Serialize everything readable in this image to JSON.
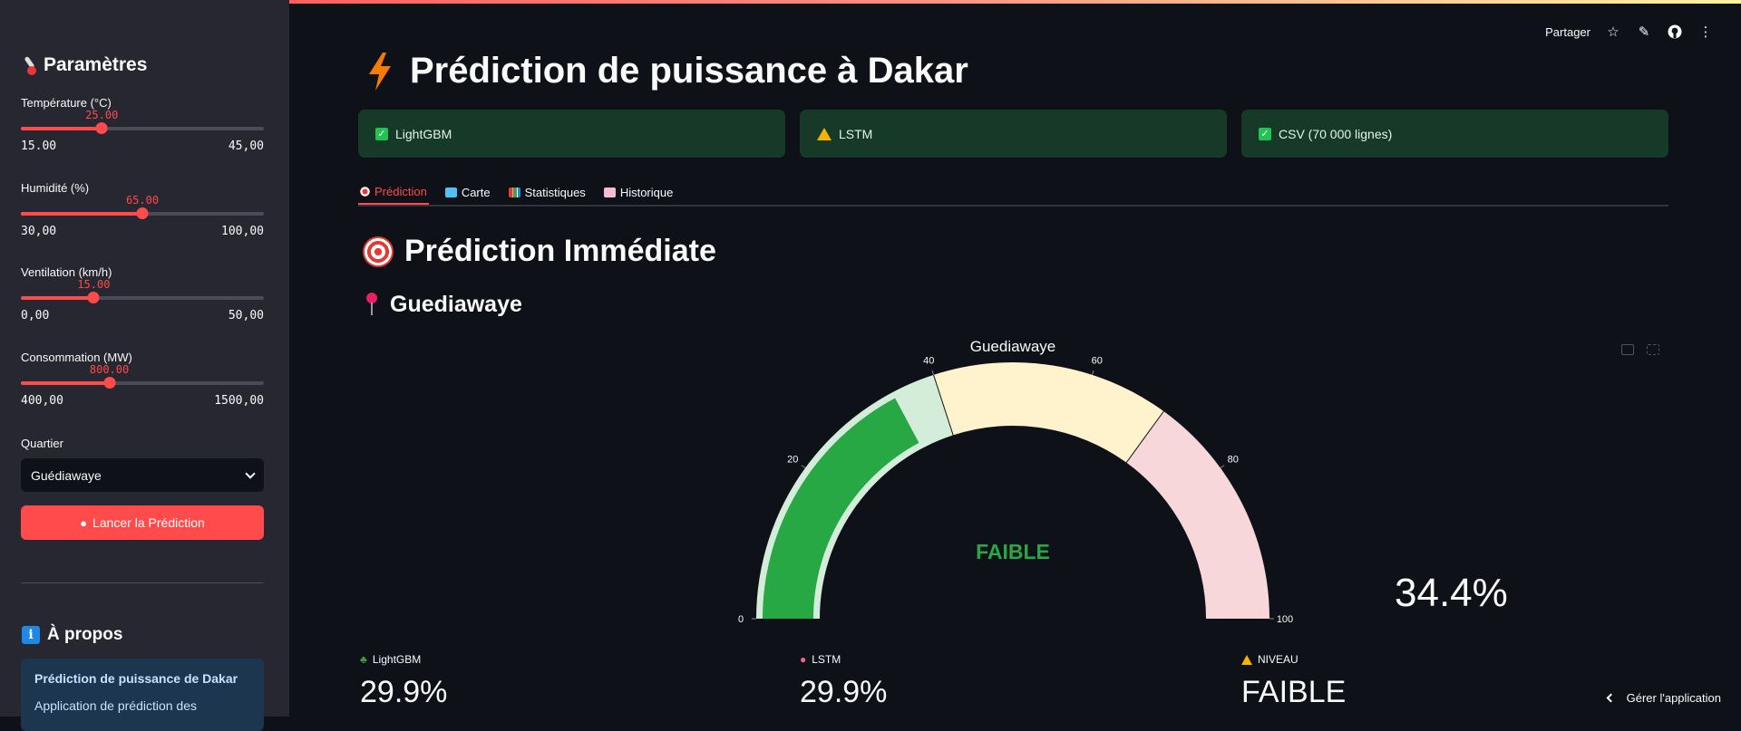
{
  "sidebar": {
    "title": "Paramètres",
    "sliders": [
      {
        "label": "Température (°C)",
        "value": "25.00",
        "min": "15.00",
        "max": "45,00",
        "fraction": 0.333
      },
      {
        "label": "Humidité (%)",
        "value": "65.00",
        "min": "30,00",
        "max": "100,00",
        "fraction": 0.5
      },
      {
        "label": "Ventilation (km/h)",
        "value": "15.00",
        "min": "0,00",
        "max": "50,00",
        "fraction": 0.3
      },
      {
        "label": "Consommation (MW)",
        "value": "800.00",
        "min": "400,00",
        "max": "1500,00",
        "fraction": 0.364
      }
    ],
    "quartier_label": "Quartier",
    "quartier_value": "Guédiawaye",
    "run_button": "Lancer la Prédiction",
    "about_title": "À propos",
    "about_line1": "Prédiction de puissance de Dakar",
    "about_line2": "Application de prédiction des"
  },
  "header": {
    "share": "Partager",
    "icons": [
      "star-icon",
      "edit-icon",
      "github-icon",
      "more-icon"
    ]
  },
  "main": {
    "title": "Prédiction de puissance à Dakar",
    "status": [
      {
        "text": "LightGBM",
        "icon": "check-icon"
      },
      {
        "text": "LSTM",
        "icon": "warning-icon"
      },
      {
        "text": "CSV (70 000 lignes)",
        "icon": "check-icon"
      }
    ],
    "tabs": [
      "Prédiction",
      "Carte",
      "Statistiques",
      "Historique"
    ],
    "active_tab": "Prédiction",
    "section_title": "Prédiction Immédiate",
    "location_title": "Guediawaye",
    "gauge": {
      "title": "Guediawaye",
      "value": 34.4,
      "range": [
        0,
        100
      ],
      "ticks": [
        "0",
        "20",
        "40",
        "60",
        "80",
        "100"
      ],
      "level_label": "FAIBLE",
      "value_text": "34.4%",
      "bands": [
        {
          "from": 0,
          "to": 40,
          "color": "#d4edda"
        },
        {
          "from": 40,
          "to": 70,
          "color": "#fff3cd"
        },
        {
          "from": 70,
          "to": 100,
          "color": "#f8d7da"
        }
      ],
      "bar_color": "#28a745"
    },
    "metrics": [
      {
        "label": "LightGBM",
        "value": "29.9%",
        "icon": "tree-icon"
      },
      {
        "label": "LSTM",
        "value": "29.9%",
        "icon": "brain-icon"
      },
      {
        "label": "NIVEAU",
        "value": "FAIBLE",
        "icon": "warning-icon"
      }
    ],
    "manage_app": "Gérer l'application"
  }
}
